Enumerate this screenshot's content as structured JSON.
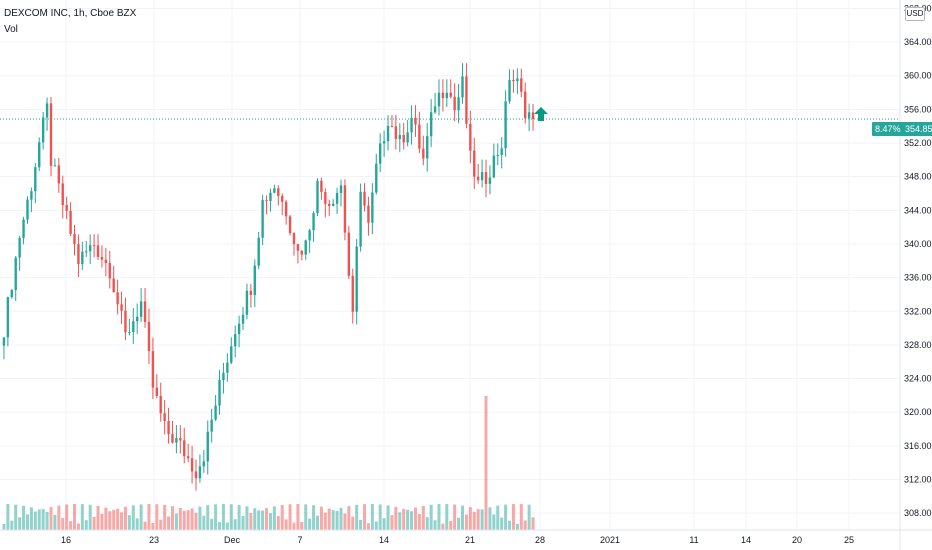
{
  "legend": {
    "symbol": "DEXCOM INC, 1h, Cboe BZX",
    "volume_label": "Vol"
  },
  "axis": {
    "currency": "USD",
    "change_pct": "8.47%",
    "last_price": "354.85"
  },
  "colors": {
    "up": "#26a69a",
    "down": "#ef5350",
    "grid": "#f0f3fa",
    "arrow": "#089981"
  },
  "chart_data": {
    "type": "candlestick",
    "ylim": [
      306,
      369
    ],
    "y_ticks": [
      308,
      312,
      316,
      320,
      324,
      328,
      332,
      336,
      340,
      344,
      348,
      352,
      356,
      360,
      364,
      368
    ],
    "x_tick_labels": [
      "16",
      "23",
      "Dec",
      "7",
      "14",
      "21",
      "28",
      "2021",
      "11",
      "14",
      "20",
      "25"
    ],
    "last_price": 354.85,
    "price_path": [
      [
        0,
        330
      ],
      [
        4,
        341
      ],
      [
        7,
        347
      ],
      [
        9,
        352
      ],
      [
        11,
        356
      ],
      [
        12,
        350
      ],
      [
        16,
        343
      ],
      [
        19,
        338
      ],
      [
        23,
        340
      ],
      [
        27,
        337
      ],
      [
        31,
        329
      ],
      [
        35,
        333
      ],
      [
        38,
        323
      ],
      [
        41,
        318
      ],
      [
        45,
        316
      ],
      [
        49,
        313
      ],
      [
        51,
        315
      ],
      [
        55,
        323
      ],
      [
        59,
        330
      ],
      [
        63,
        335
      ],
      [
        66,
        345
      ],
      [
        69,
        347
      ],
      [
        72,
        344
      ],
      [
        75,
        339
      ],
      [
        77,
        340
      ],
      [
        80,
        347
      ],
      [
        83,
        345
      ],
      [
        86,
        347
      ],
      [
        89,
        331
      ],
      [
        91,
        347
      ],
      [
        93,
        342
      ],
      [
        95,
        349
      ],
      [
        98,
        355
      ],
      [
        101,
        352
      ],
      [
        104,
        355
      ],
      [
        107,
        350
      ],
      [
        110,
        357
      ],
      [
        113,
        359
      ],
      [
        115,
        356
      ],
      [
        117,
        359
      ],
      [
        119,
        350
      ],
      [
        121,
        347
      ],
      [
        123,
        348
      ],
      [
        125,
        350
      ],
      [
        127,
        352
      ],
      [
        129,
        360
      ],
      [
        131,
        359
      ],
      [
        133,
        356
      ],
      [
        135,
        355
      ]
    ]
  }
}
